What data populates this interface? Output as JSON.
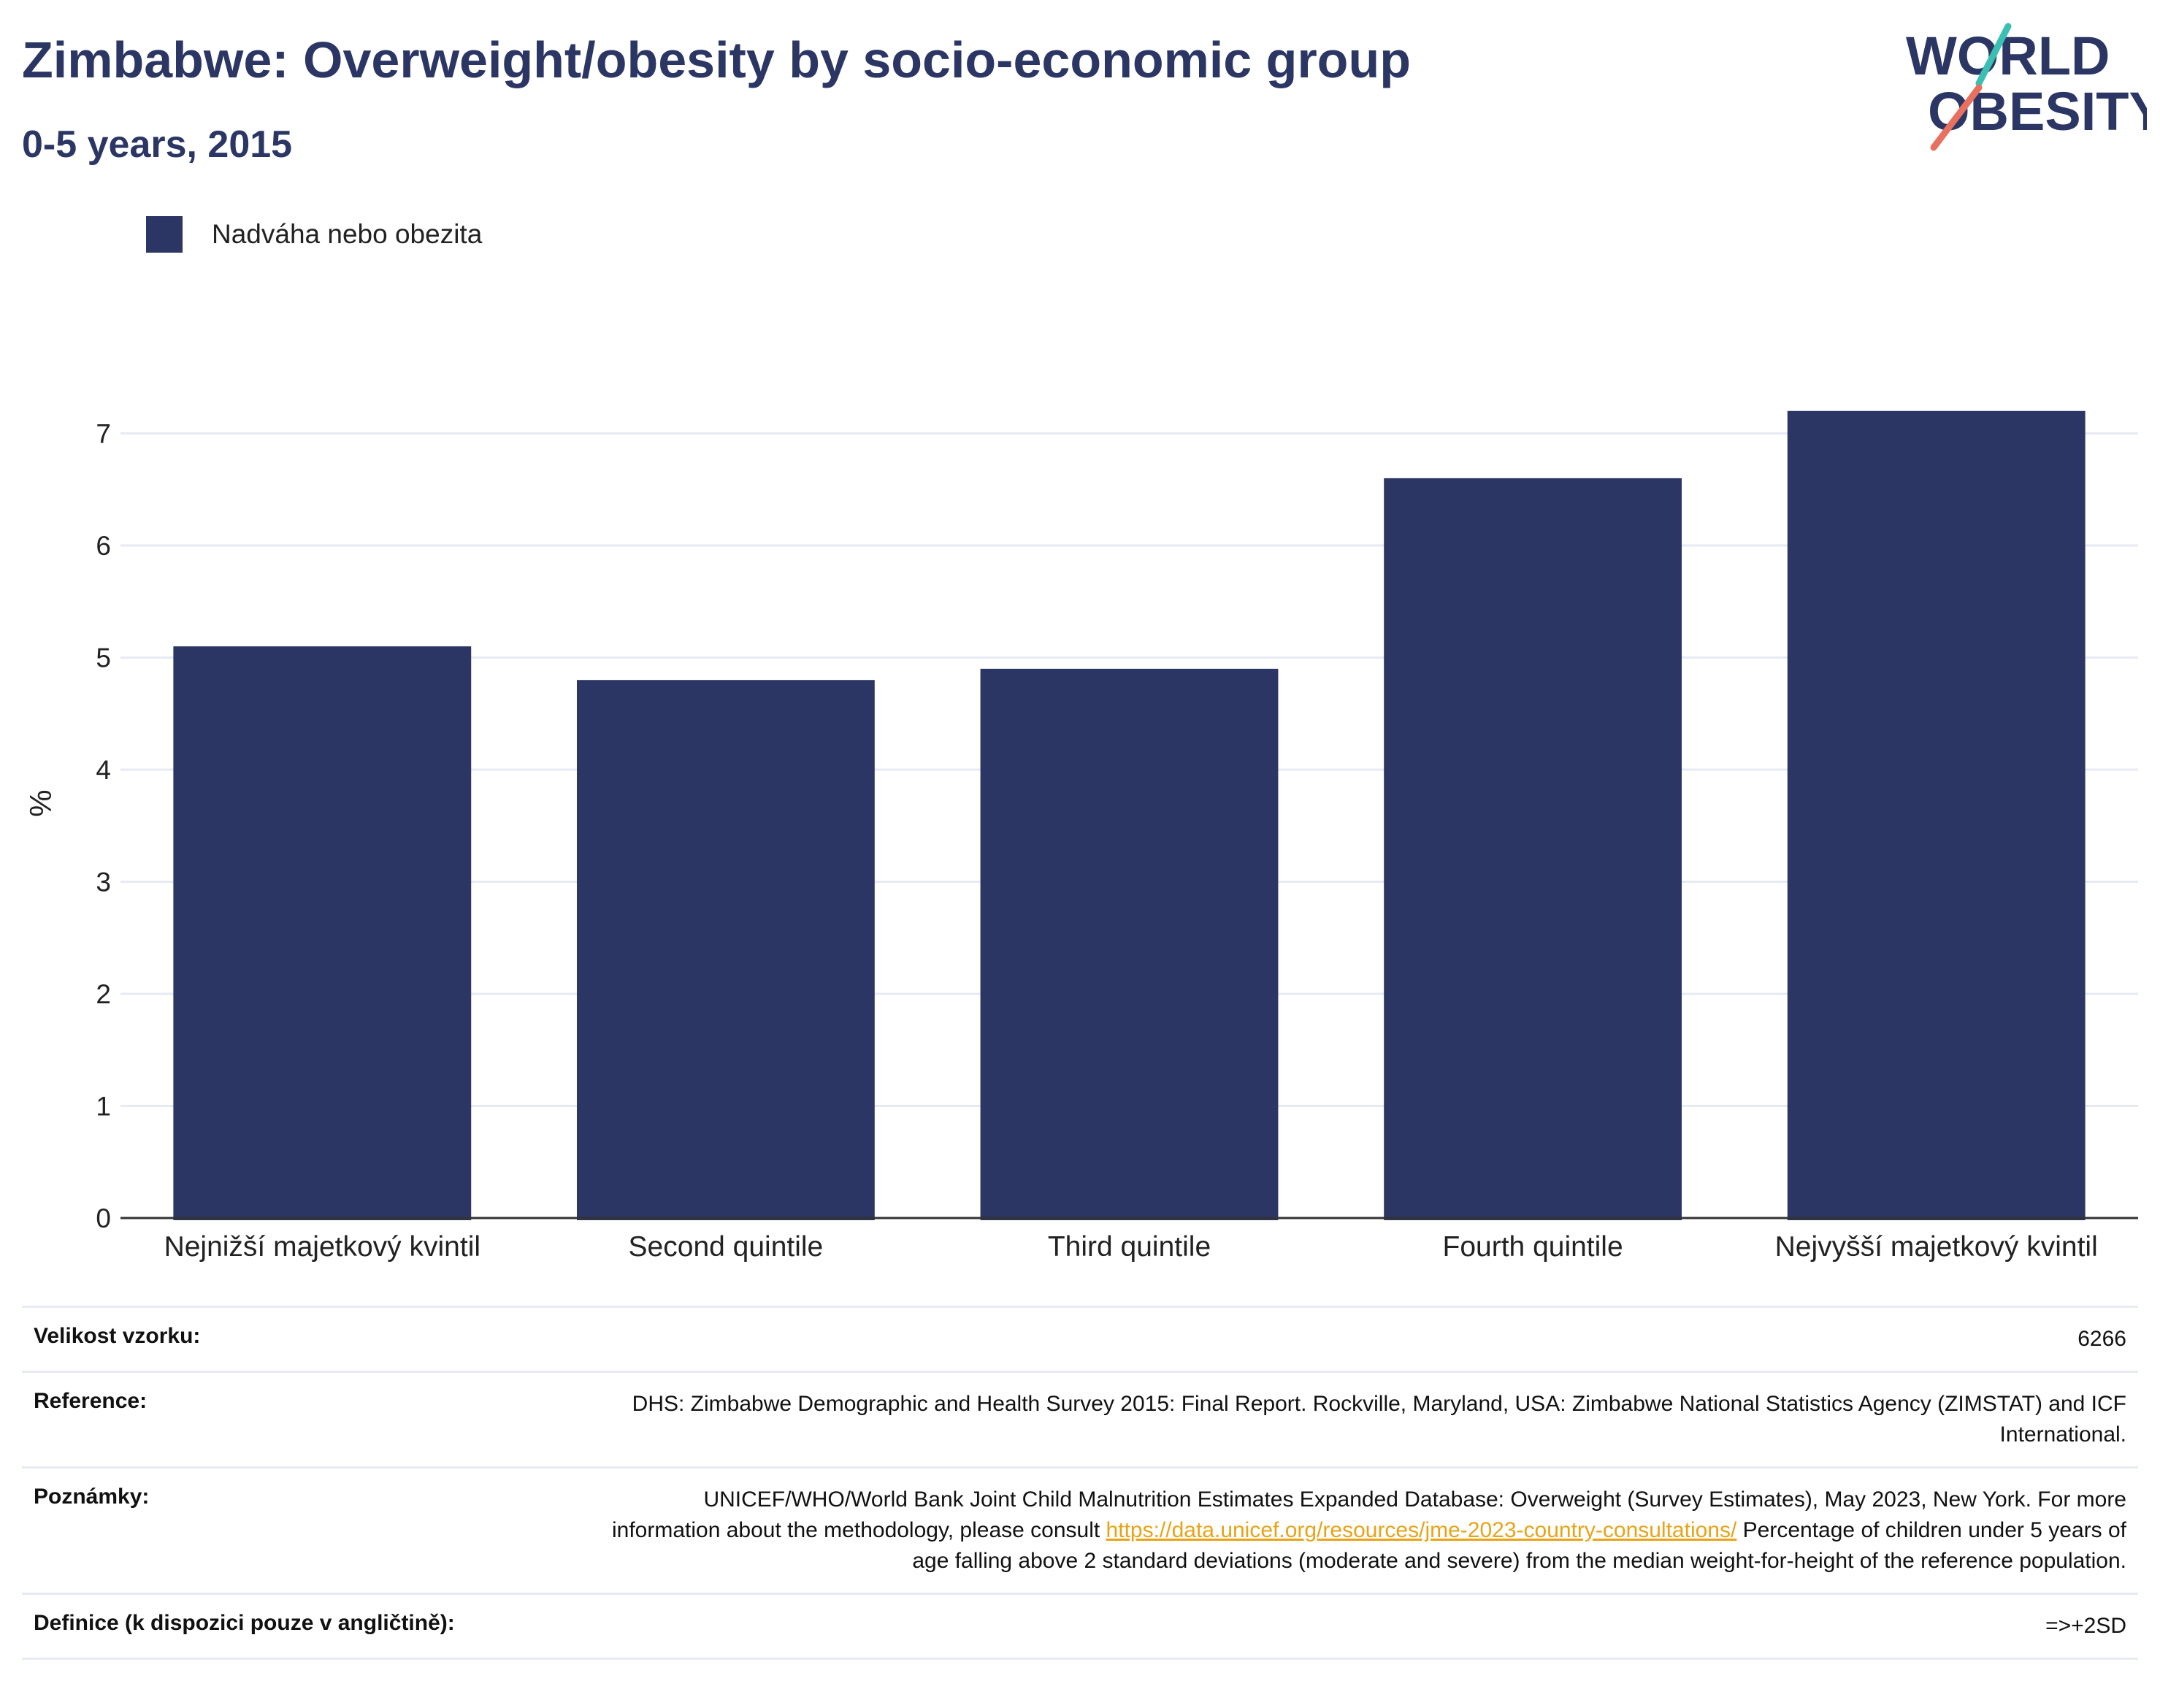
{
  "title": "Zimbabwe: Overweight/obesity by socio-economic group",
  "subtitle": "0-5 years, 2015",
  "logo": {
    "line1": "WORLD",
    "line2": "OBESITY"
  },
  "legend": {
    "label": "Nadváha nebo obezita"
  },
  "colors": {
    "bar": "#2b3664",
    "title": "#2b3664",
    "grid": "#e7eaf3",
    "axis": "#333333",
    "link": "#e8a317",
    "logo_teal": "#3bbfb2",
    "logo_coral": "#e8705f"
  },
  "chart_data": {
    "type": "bar",
    "categories": [
      "Nejnižší majetkový kvintil",
      "Second quintile",
      "Third quintile",
      "Fourth quintile",
      "Nejvyšší majetkový kvintil"
    ],
    "series": [
      {
        "name": "Nadváha nebo obezita",
        "values": [
          5.1,
          4.8,
          4.9,
          6.6,
          7.2
        ]
      }
    ],
    "ylabel": "%",
    "xlabel": "",
    "ylim": [
      0,
      7.4
    ],
    "yticks": [
      0,
      1,
      2,
      3,
      4,
      5,
      6,
      7
    ],
    "grid": true,
    "legend_position": "top-left"
  },
  "info": {
    "sample_size": {
      "label": "Velikost vzorku:",
      "value": "6266"
    },
    "reference": {
      "label": "Reference:",
      "value": "DHS: Zimbabwe Demographic and Health Survey 2015: Final Report. Rockville, Maryland, USA: Zimbabwe National Statistics Agency (ZIMSTAT) and ICF International."
    },
    "notes": {
      "label": "Poznámky:",
      "text_before": "UNICEF/WHO/World Bank Joint Child Malnutrition Estimates Expanded Database: Overweight (Survey Estimates), May 2023, New York. For more information about the methodology, please consult ",
      "link": "https://data.unicef.org/resources/jme-2023-country-consultations/",
      "text_after": " Percentage of children under 5 years of age falling above 2 standard deviations (moderate and severe) from the median weight-for-height of the reference population."
    },
    "definition": {
      "label": "Definice (k dispozici pouze v angličtině):",
      "value": "=>+2SD"
    }
  }
}
